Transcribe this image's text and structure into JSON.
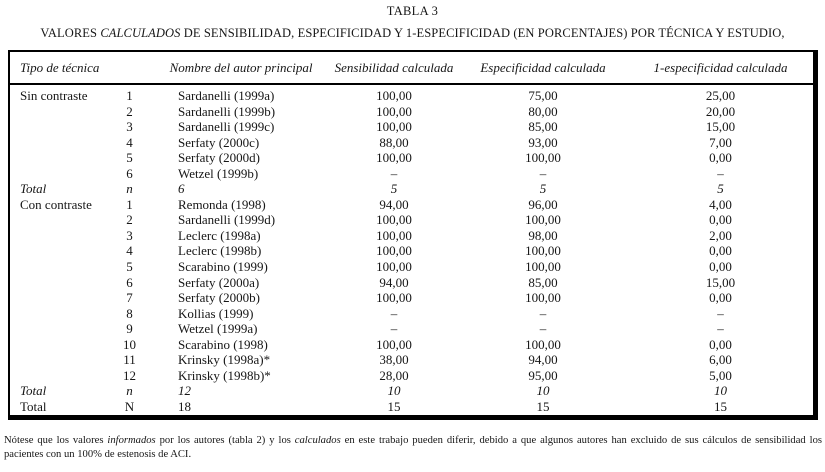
{
  "page": {
    "title": "TABLA 3",
    "subtitle": {
      "pre": "VALORES ",
      "em": "CALCULADOS",
      "post": " DE SENSIBILIDAD, ESPECIFICIDAD Y 1-ESPECIFICIDAD (EN PORCENTAJES) POR TÉCNICA Y ESTUDIO,"
    }
  },
  "table": {
    "headers": [
      "Tipo de técnica",
      "Nombre del autor principal",
      "Sensibilidad calculada",
      "Especificidad calculada",
      "1-especificidad calculada"
    ],
    "rows": [
      {
        "tipo": "Sin contraste",
        "num": "1",
        "autor": "Sardanelli (1999a)",
        "sens": "100,00",
        "espec": "75,00",
        "unoespec": "25,00",
        "italic": false
      },
      {
        "tipo": "",
        "num": "2",
        "autor": "Sardanelli (1999b)",
        "sens": "100,00",
        "espec": "80,00",
        "unoespec": "20,00",
        "italic": false
      },
      {
        "tipo": "",
        "num": "3",
        "autor": "Sardanelli (1999c)",
        "sens": "100,00",
        "espec": "85,00",
        "unoespec": "15,00",
        "italic": false
      },
      {
        "tipo": "",
        "num": "4",
        "autor": "Serfaty (2000c)",
        "sens": "88,00",
        "espec": "93,00",
        "unoespec": "7,00",
        "italic": false
      },
      {
        "tipo": "",
        "num": "5",
        "autor": "Serfaty (2000d)",
        "sens": "100,00",
        "espec": "100,00",
        "unoespec": "0,00",
        "italic": false
      },
      {
        "tipo": "",
        "num": "6",
        "autor": "Wetzel (1999b)",
        "sens": "–",
        "espec": "–",
        "unoespec": "–",
        "italic": false
      },
      {
        "tipo": "Total",
        "num": "n",
        "autor": "6",
        "sens": "5",
        "espec": "5",
        "unoespec": "5",
        "italic": true
      },
      {
        "tipo": "Con contraste",
        "num": "1",
        "autor": "Remonda (1998)",
        "sens": "94,00",
        "espec": "96,00",
        "unoespec": "4,00",
        "italic": false
      },
      {
        "tipo": "",
        "num": "2",
        "autor": "Sardanelli (1999d)",
        "sens": "100,00",
        "espec": "100,00",
        "unoespec": "0,00",
        "italic": false
      },
      {
        "tipo": "",
        "num": "3",
        "autor": "Leclerc (1998a)",
        "sens": "100,00",
        "espec": "98,00",
        "unoespec": "2,00",
        "italic": false
      },
      {
        "tipo": "",
        "num": "4",
        "autor": "Leclerc (1998b)",
        "sens": "100,00",
        "espec": "100,00",
        "unoespec": "0,00",
        "italic": false
      },
      {
        "tipo": "",
        "num": "5",
        "autor": "Scarabino (1999)",
        "sens": "100,00",
        "espec": "100,00",
        "unoespec": "0,00",
        "italic": false
      },
      {
        "tipo": "",
        "num": "6",
        "autor": "Serfaty (2000a)",
        "sens": "94,00",
        "espec": "85,00",
        "unoespec": "15,00",
        "italic": false
      },
      {
        "tipo": "",
        "num": "7",
        "autor": "Serfaty (2000b)",
        "sens": "100,00",
        "espec": "100,00",
        "unoespec": "0,00",
        "italic": false
      },
      {
        "tipo": "",
        "num": "8",
        "autor": "Kollias (1999)",
        "sens": "–",
        "espec": "–",
        "unoespec": "–",
        "italic": false
      },
      {
        "tipo": "",
        "num": "9",
        "autor": "Wetzel (1999a)",
        "sens": "–",
        "espec": "–",
        "unoespec": "–",
        "italic": false
      },
      {
        "tipo": "",
        "num": "10",
        "autor": "Scarabino (1998)",
        "sens": "100,00",
        "espec": "100,00",
        "unoespec": "0,00",
        "italic": false
      },
      {
        "tipo": "",
        "num": "11",
        "autor": "Krinsky (1998a)*",
        "sens": "38,00",
        "espec": "94,00",
        "unoespec": "6,00",
        "italic": false
      },
      {
        "tipo": "",
        "num": "12",
        "autor": "Krinsky (1998b)*",
        "sens": "28,00",
        "espec": "95,00",
        "unoespec": "5,00",
        "italic": false
      },
      {
        "tipo": "Total",
        "num": "n",
        "autor": "12",
        "sens": "10",
        "espec": "10",
        "unoespec": "10",
        "italic": true
      },
      {
        "tipo": "Total",
        "num": "N",
        "autor": "18",
        "sens": "15",
        "espec": "15",
        "unoespec": "15",
        "italic": false
      }
    ]
  },
  "footnote": {
    "p1": "Nótese que los valores ",
    "em1": "informados",
    "p2": " por los autores (tabla 2) y los ",
    "em2": "calculados",
    "p3": " en este trabajo pueden diferir, debido a que algunos autores han excluido de sus cálculos de sensibilidad los pacientes con un 100% de estenosis de ACI."
  }
}
